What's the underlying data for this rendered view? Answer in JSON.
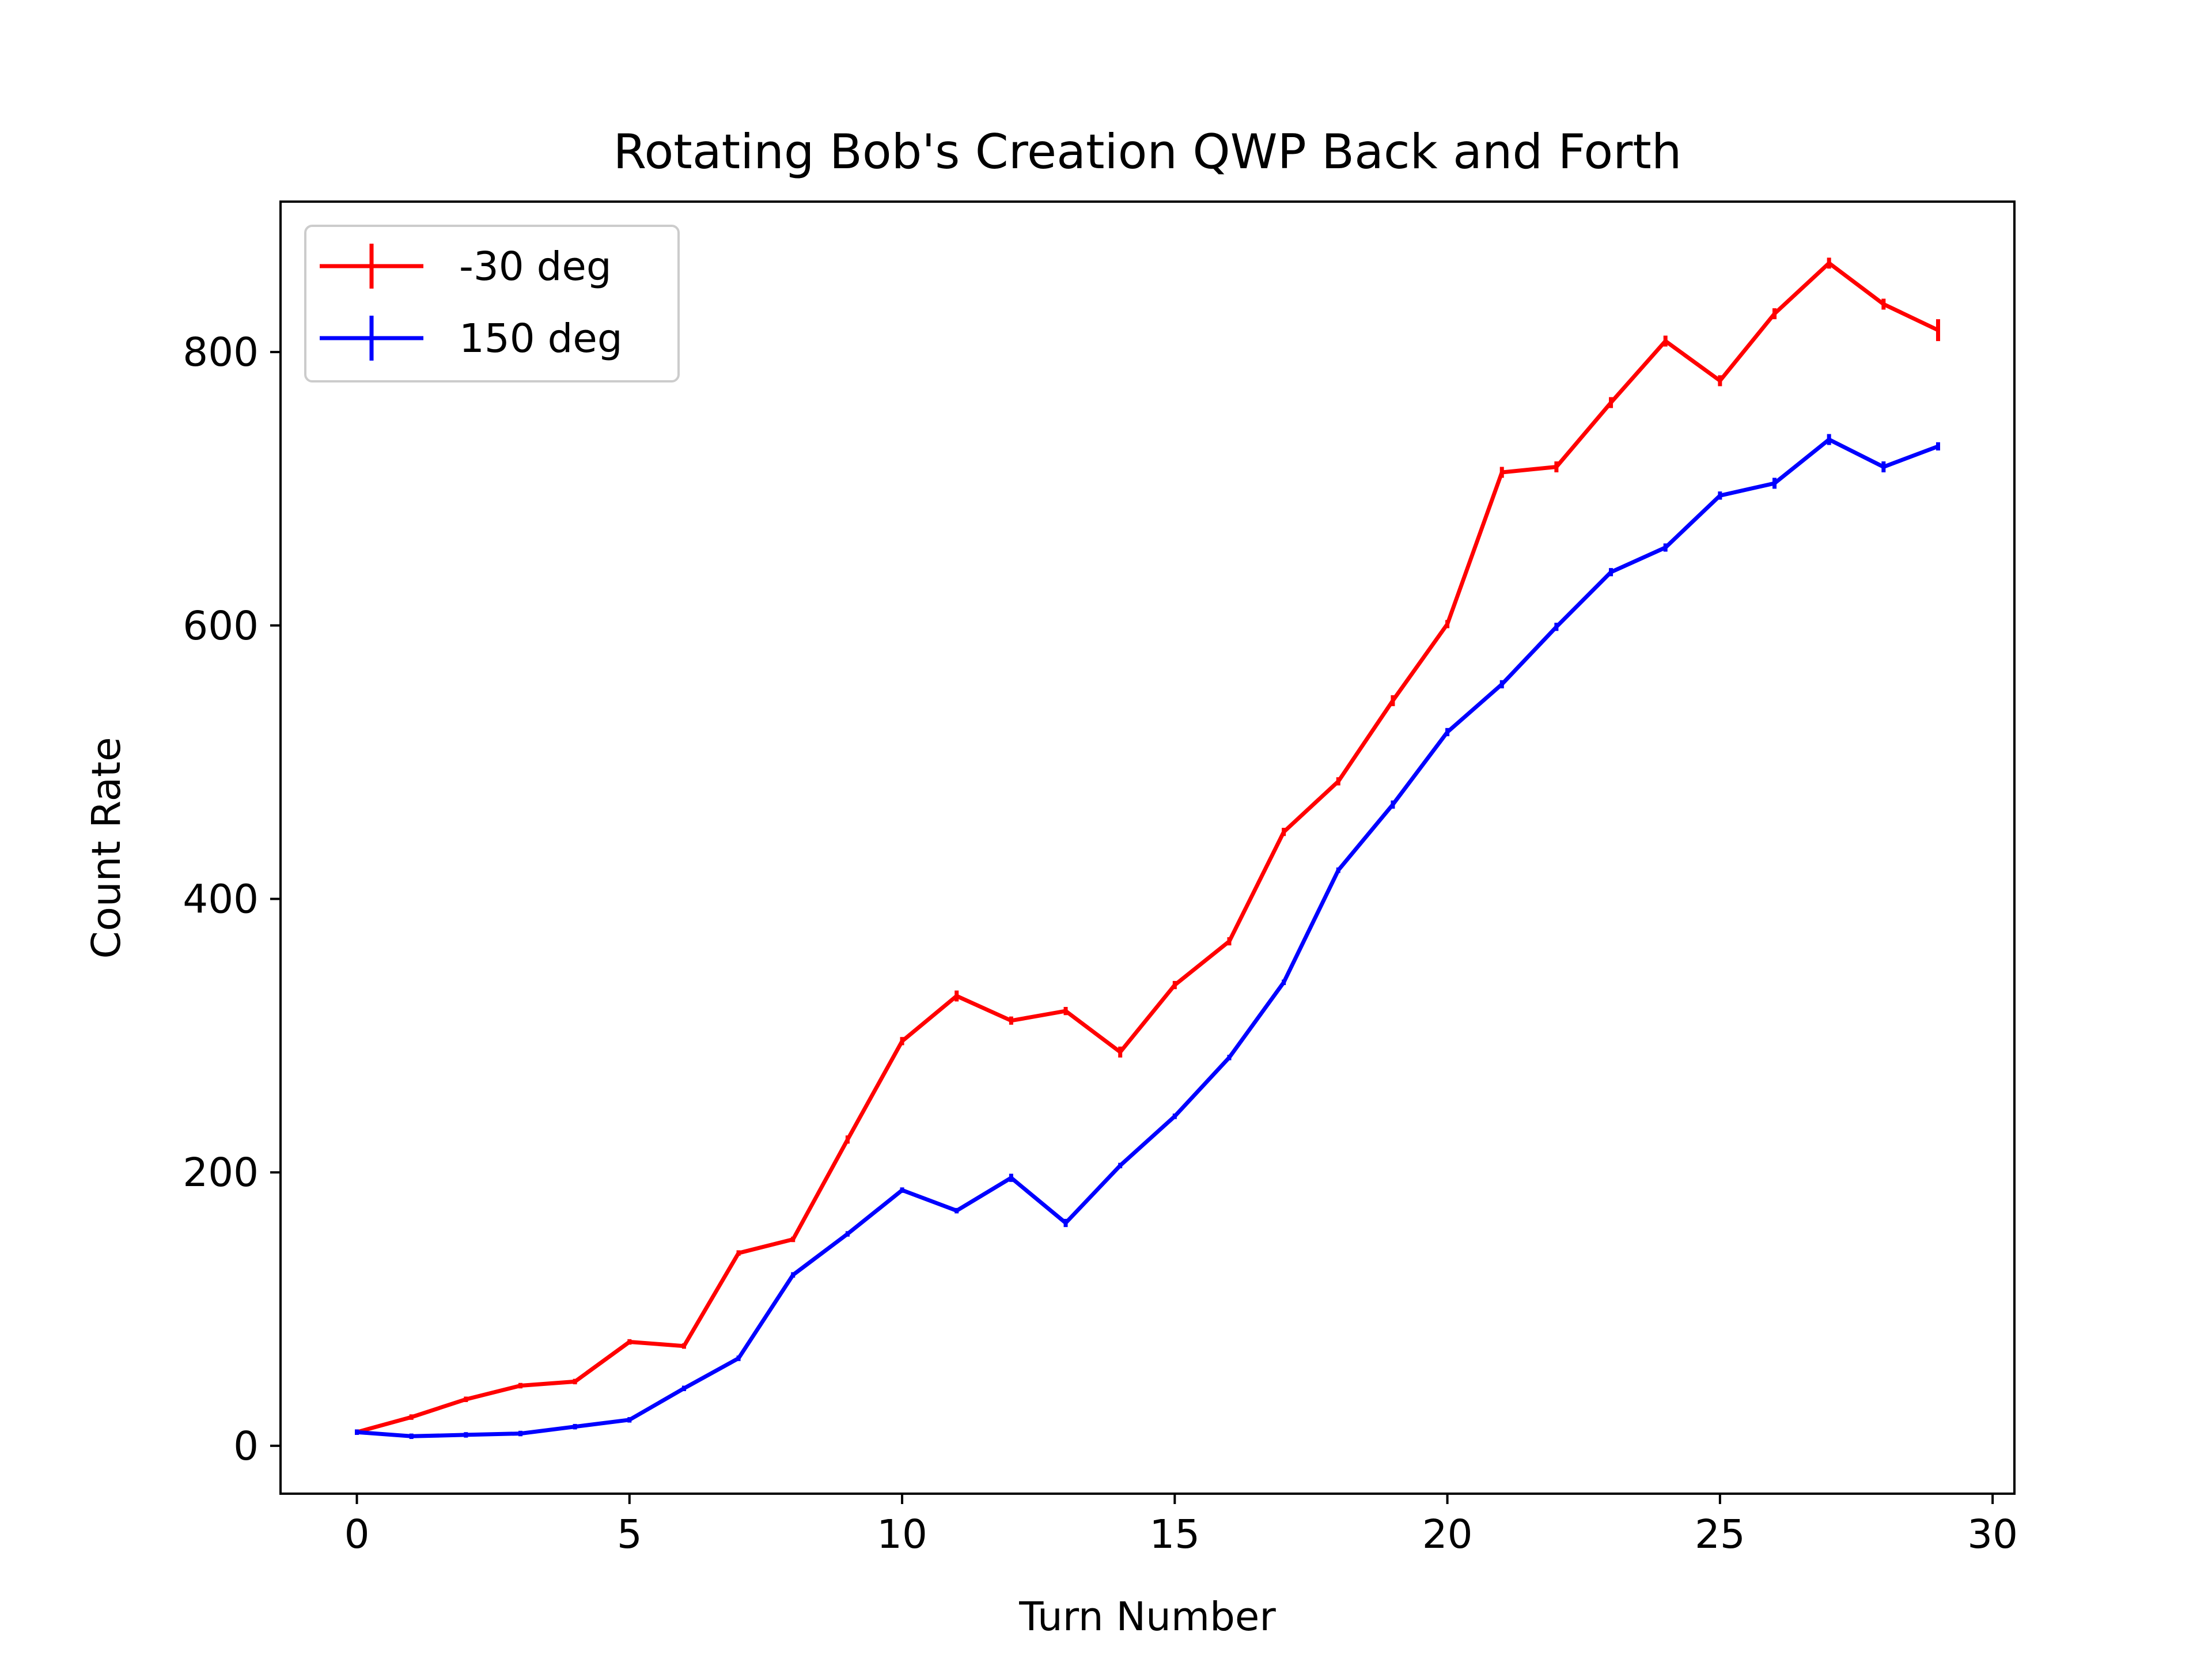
{
  "chart_data": {
    "type": "line",
    "title": "Rotating Bob's Creation QWP Back and Forth",
    "xlabel": "Turn Number",
    "ylabel": "Count Rate",
    "xlim": [
      -1.4,
      30.4
    ],
    "ylim": [
      -35,
      910
    ],
    "xticks": [
      0,
      5,
      10,
      15,
      20,
      25,
      30
    ],
    "yticks": [
      0,
      200,
      400,
      600,
      800
    ],
    "grid": false,
    "legend_position": "top-left",
    "x": [
      0,
      1,
      2,
      3,
      4,
      5,
      6,
      7,
      8,
      9,
      10,
      11,
      12,
      13,
      14,
      15,
      16,
      17,
      18,
      19,
      20,
      21,
      22,
      23,
      24,
      25,
      26,
      27,
      28,
      29
    ],
    "series": [
      {
        "name": "-30 deg",
        "color": "#ff0000",
        "values": [
          10,
          21,
          34,
          44,
          47,
          76,
          73,
          141,
          151,
          224,
          296,
          329,
          311,
          318,
          288,
          337,
          369,
          449,
          486,
          545,
          601,
          712,
          716,
          763,
          808,
          779,
          828,
          865,
          835,
          816
        ],
        "errors": [
          2,
          2,
          2,
          2,
          2,
          2,
          2,
          2,
          2,
          3,
          3,
          4,
          3,
          3,
          4,
          3,
          3,
          3,
          3,
          4,
          3,
          4,
          4,
          4,
          4,
          4,
          4,
          4,
          4,
          8
        ]
      },
      {
        "name": "150 deg",
        "color": "#0000ff",
        "values": [
          10,
          7,
          8,
          9,
          14,
          19,
          42,
          64,
          125,
          155,
          187,
          172,
          196,
          163,
          205,
          241,
          284,
          339,
          421,
          469,
          522,
          557,
          599,
          639,
          657,
          695,
          704,
          736,
          716,
          731
        ],
        "errors": [
          2,
          2,
          2,
          2,
          2,
          2,
          2,
          2,
          2,
          2,
          2,
          2,
          3,
          3,
          2,
          2,
          2,
          2,
          2,
          3,
          3,
          3,
          3,
          3,
          3,
          3,
          4,
          4,
          4,
          3
        ]
      }
    ]
  }
}
